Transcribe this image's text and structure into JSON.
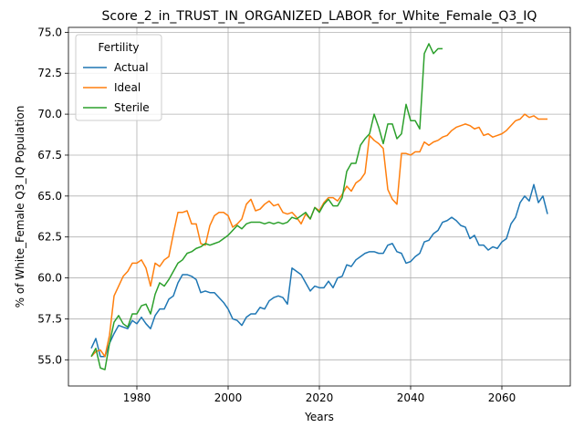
{
  "chart_data": {
    "type": "line",
    "title": "Score_2_in_TRUST_IN_ORGANIZED_LABOR_for_White_Female_Q3_IQ",
    "xlabel": "Years",
    "ylabel": "% of White_Female Q3_IQ Population",
    "xlim": [
      1965,
      2075
    ],
    "ylim": [
      53.4,
      75.3
    ],
    "xticks": [
      1980,
      2000,
      2020,
      2040,
      2060
    ],
    "yticks": [
      55.0,
      57.5,
      60.0,
      62.5,
      65.0,
      67.5,
      70.0,
      72.5,
      75.0
    ],
    "ytick_labels": [
      "55.0",
      "57.5",
      "60.0",
      "62.5",
      "65.0",
      "67.5",
      "70.0",
      "72.5",
      "75.0"
    ],
    "grid": true,
    "legend": {
      "title": "Fertility",
      "placement": "top-left"
    },
    "series": [
      {
        "name": "Actual",
        "color": "#1f77b4",
        "points": [
          [
            1970,
            55.7
          ],
          [
            1971,
            56.3
          ],
          [
            1972,
            55.2
          ],
          [
            1973,
            55.2
          ],
          [
            1974,
            56.0
          ],
          [
            1975,
            56.6
          ],
          [
            1976,
            57.1
          ],
          [
            1977,
            57.0
          ],
          [
            1978,
            56.9
          ],
          [
            1979,
            57.4
          ],
          [
            1980,
            57.2
          ],
          [
            1981,
            57.6
          ],
          [
            1982,
            57.2
          ],
          [
            1983,
            56.9
          ],
          [
            1984,
            57.7
          ],
          [
            1985,
            58.1
          ],
          [
            1986,
            58.1
          ],
          [
            1987,
            58.7
          ],
          [
            1988,
            58.9
          ],
          [
            1989,
            59.7
          ],
          [
            1990,
            60.2
          ],
          [
            1991,
            60.2
          ],
          [
            1992,
            60.1
          ],
          [
            1993,
            59.9
          ],
          [
            1994,
            59.1
          ],
          [
            1995,
            59.2
          ],
          [
            1996,
            59.1
          ],
          [
            1997,
            59.1
          ],
          [
            1998,
            58.8
          ],
          [
            1999,
            58.5
          ],
          [
            2000,
            58.1
          ],
          [
            2001,
            57.5
          ],
          [
            2002,
            57.4
          ],
          [
            2003,
            57.1
          ],
          [
            2004,
            57.6
          ],
          [
            2005,
            57.8
          ],
          [
            2006,
            57.8
          ],
          [
            2007,
            58.2
          ],
          [
            2008,
            58.1
          ],
          [
            2009,
            58.6
          ],
          [
            2010,
            58.8
          ],
          [
            2011,
            58.9
          ],
          [
            2012,
            58.8
          ],
          [
            2013,
            58.4
          ],
          [
            2014,
            60.6
          ],
          [
            2015,
            60.4
          ],
          [
            2016,
            60.2
          ],
          [
            2017,
            59.7
          ],
          [
            2018,
            59.2
          ],
          [
            2019,
            59.5
          ],
          [
            2020,
            59.4
          ],
          [
            2021,
            59.4
          ],
          [
            2022,
            59.8
          ],
          [
            2023,
            59.4
          ],
          [
            2024,
            60.0
          ],
          [
            2025,
            60.1
          ],
          [
            2026,
            60.8
          ],
          [
            2027,
            60.7
          ],
          [
            2028,
            61.1
          ],
          [
            2029,
            61.3
          ],
          [
            2030,
            61.5
          ],
          [
            2031,
            61.6
          ],
          [
            2032,
            61.6
          ],
          [
            2033,
            61.5
          ],
          [
            2034,
            61.5
          ],
          [
            2035,
            62.0
          ],
          [
            2036,
            62.1
          ],
          [
            2037,
            61.6
          ],
          [
            2038,
            61.5
          ],
          [
            2039,
            60.9
          ],
          [
            2040,
            61.0
          ],
          [
            2041,
            61.3
          ],
          [
            2042,
            61.5
          ],
          [
            2043,
            62.2
          ],
          [
            2044,
            62.3
          ],
          [
            2045,
            62.7
          ],
          [
            2046,
            62.9
          ],
          [
            2047,
            63.4
          ],
          [
            2048,
            63.5
          ],
          [
            2049,
            63.7
          ],
          [
            2050,
            63.5
          ],
          [
            2051,
            63.2
          ],
          [
            2052,
            63.1
          ],
          [
            2053,
            62.4
          ],
          [
            2054,
            62.6
          ],
          [
            2055,
            62.0
          ],
          [
            2056,
            62.0
          ],
          [
            2057,
            61.7
          ],
          [
            2058,
            61.9
          ],
          [
            2059,
            61.8
          ],
          [
            2060,
            62.2
          ],
          [
            2061,
            62.4
          ],
          [
            2062,
            63.3
          ],
          [
            2063,
            63.7
          ],
          [
            2064,
            64.6
          ],
          [
            2065,
            65.0
          ],
          [
            2066,
            64.7
          ],
          [
            2067,
            65.7
          ],
          [
            2068,
            64.6
          ],
          [
            2069,
            65.0
          ],
          [
            2070,
            63.9
          ]
        ]
      },
      {
        "name": "Ideal",
        "color": "#ff7f0e",
        "points": [
          [
            1970,
            55.2
          ],
          [
            1971,
            55.5
          ],
          [
            1972,
            55.6
          ],
          [
            1973,
            55.2
          ],
          [
            1974,
            56.5
          ],
          [
            1975,
            58.9
          ],
          [
            1976,
            59.5
          ],
          [
            1977,
            60.1
          ],
          [
            1978,
            60.4
          ],
          [
            1979,
            60.9
          ],
          [
            1980,
            60.9
          ],
          [
            1981,
            61.1
          ],
          [
            1982,
            60.6
          ],
          [
            1983,
            59.5
          ],
          [
            1984,
            60.9
          ],
          [
            1985,
            60.7
          ],
          [
            1986,
            61.1
          ],
          [
            1987,
            61.3
          ],
          [
            1988,
            62.7
          ],
          [
            1989,
            64.0
          ],
          [
            1990,
            64.0
          ],
          [
            1991,
            64.1
          ],
          [
            1992,
            63.3
          ],
          [
            1993,
            63.3
          ],
          [
            1994,
            62.1
          ],
          [
            1995,
            62.0
          ],
          [
            1996,
            63.2
          ],
          [
            1997,
            63.8
          ],
          [
            1998,
            64.0
          ],
          [
            1999,
            64.0
          ],
          [
            2000,
            63.8
          ],
          [
            2001,
            63.1
          ],
          [
            2002,
            63.3
          ],
          [
            2003,
            63.6
          ],
          [
            2004,
            64.5
          ],
          [
            2005,
            64.8
          ],
          [
            2006,
            64.1
          ],
          [
            2007,
            64.2
          ],
          [
            2008,
            64.5
          ],
          [
            2009,
            64.7
          ],
          [
            2010,
            64.4
          ],
          [
            2011,
            64.5
          ],
          [
            2012,
            64.0
          ],
          [
            2013,
            63.9
          ],
          [
            2014,
            64.0
          ],
          [
            2015,
            63.7
          ],
          [
            2016,
            63.3
          ],
          [
            2017,
            63.9
          ],
          [
            2018,
            63.6
          ],
          [
            2019,
            64.3
          ],
          [
            2020,
            64.1
          ],
          [
            2021,
            64.6
          ],
          [
            2022,
            64.9
          ],
          [
            2023,
            64.9
          ],
          [
            2024,
            64.7
          ],
          [
            2025,
            65.1
          ],
          [
            2026,
            65.6
          ],
          [
            2027,
            65.3
          ],
          [
            2028,
            65.8
          ],
          [
            2029,
            66.0
          ],
          [
            2030,
            66.4
          ],
          [
            2031,
            68.7
          ],
          [
            2032,
            68.4
          ],
          [
            2033,
            68.2
          ],
          [
            2034,
            67.9
          ],
          [
            2035,
            65.4
          ],
          [
            2036,
            64.8
          ],
          [
            2037,
            64.5
          ],
          [
            2038,
            67.6
          ],
          [
            2039,
            67.6
          ],
          [
            2040,
            67.5
          ],
          [
            2041,
            67.7
          ],
          [
            2042,
            67.7
          ],
          [
            2043,
            68.3
          ],
          [
            2044,
            68.1
          ],
          [
            2045,
            68.3
          ],
          [
            2046,
            68.4
          ],
          [
            2047,
            68.6
          ],
          [
            2048,
            68.7
          ],
          [
            2049,
            69.0
          ],
          [
            2050,
            69.2
          ],
          [
            2051,
            69.3
          ],
          [
            2052,
            69.4
          ],
          [
            2053,
            69.3
          ],
          [
            2054,
            69.1
          ],
          [
            2055,
            69.2
          ],
          [
            2056,
            68.7
          ],
          [
            2057,
            68.8
          ],
          [
            2058,
            68.6
          ],
          [
            2059,
            68.7
          ],
          [
            2060,
            68.8
          ],
          [
            2061,
            69.0
          ],
          [
            2062,
            69.3
          ],
          [
            2063,
            69.6
          ],
          [
            2064,
            69.7
          ],
          [
            2065,
            70.0
          ],
          [
            2066,
            69.8
          ],
          [
            2067,
            69.9
          ],
          [
            2068,
            69.7
          ],
          [
            2069,
            69.7
          ],
          [
            2070,
            69.7
          ]
        ]
      },
      {
        "name": "Sterile",
        "color": "#2ca02c",
        "points": [
          [
            1970,
            55.2
          ],
          [
            1971,
            55.7
          ],
          [
            1972,
            54.5
          ],
          [
            1973,
            54.4
          ],
          [
            1974,
            56.0
          ],
          [
            1975,
            57.3
          ],
          [
            1976,
            57.7
          ],
          [
            1977,
            57.2
          ],
          [
            1978,
            57.0
          ],
          [
            1979,
            57.8
          ],
          [
            1980,
            57.8
          ],
          [
            1981,
            58.3
          ],
          [
            1982,
            58.4
          ],
          [
            1983,
            57.8
          ],
          [
            1984,
            59.0
          ],
          [
            1985,
            59.7
          ],
          [
            1986,
            59.5
          ],
          [
            1987,
            59.9
          ],
          [
            1988,
            60.4
          ],
          [
            1989,
            60.9
          ],
          [
            1990,
            61.1
          ],
          [
            1991,
            61.5
          ],
          [
            1992,
            61.6
          ],
          [
            1993,
            61.8
          ],
          [
            1994,
            61.9
          ],
          [
            1995,
            62.1
          ],
          [
            1996,
            62.0
          ],
          [
            1997,
            62.1
          ],
          [
            1998,
            62.2
          ],
          [
            1999,
            62.4
          ],
          [
            2000,
            62.6
          ],
          [
            2001,
            62.9
          ],
          [
            2002,
            63.2
          ],
          [
            2003,
            63.0
          ],
          [
            2004,
            63.3
          ],
          [
            2005,
            63.4
          ],
          [
            2006,
            63.4
          ],
          [
            2007,
            63.4
          ],
          [
            2008,
            63.3
          ],
          [
            2009,
            63.4
          ],
          [
            2010,
            63.3
          ],
          [
            2011,
            63.4
          ],
          [
            2012,
            63.3
          ],
          [
            2013,
            63.4
          ],
          [
            2014,
            63.7
          ],
          [
            2015,
            63.6
          ],
          [
            2016,
            63.8
          ],
          [
            2017,
            64.0
          ],
          [
            2018,
            63.6
          ],
          [
            2019,
            64.3
          ],
          [
            2020,
            64.0
          ],
          [
            2021,
            64.5
          ],
          [
            2022,
            64.8
          ],
          [
            2023,
            64.4
          ],
          [
            2024,
            64.4
          ],
          [
            2025,
            64.9
          ],
          [
            2026,
            66.5
          ],
          [
            2027,
            67.0
          ],
          [
            2028,
            67.0
          ],
          [
            2029,
            68.1
          ],
          [
            2030,
            68.5
          ],
          [
            2031,
            68.8
          ],
          [
            2032,
            70.0
          ],
          [
            2033,
            69.2
          ],
          [
            2034,
            68.2
          ],
          [
            2035,
            69.4
          ],
          [
            2036,
            69.4
          ],
          [
            2037,
            68.5
          ],
          [
            2038,
            68.8
          ],
          [
            2039,
            70.6
          ],
          [
            2040,
            69.6
          ],
          [
            2041,
            69.6
          ],
          [
            2042,
            69.1
          ],
          [
            2043,
            73.7
          ],
          [
            2044,
            74.3
          ],
          [
            2045,
            73.7
          ],
          [
            2046,
            74.0
          ],
          [
            2047,
            74.0
          ]
        ]
      }
    ]
  }
}
